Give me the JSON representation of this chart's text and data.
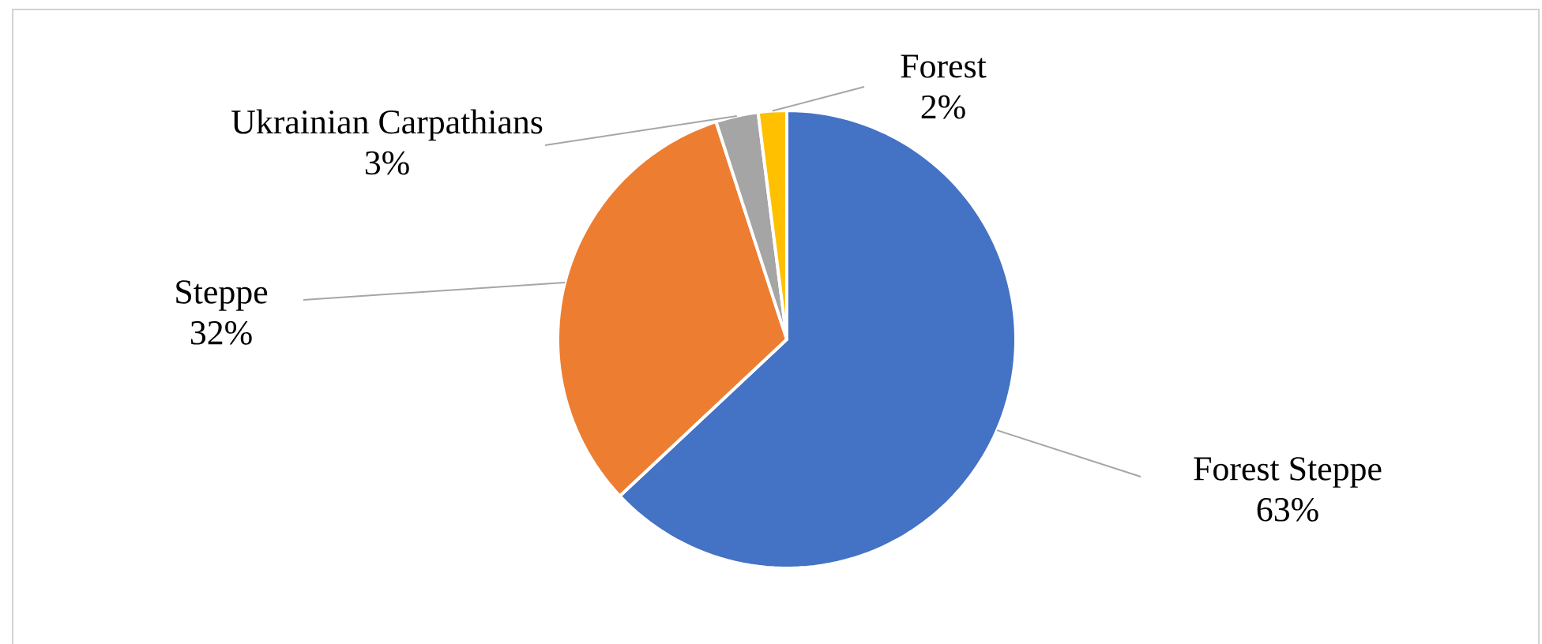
{
  "chart_data": {
    "type": "pie",
    "categories": [
      "Forest Steppe",
      "Steppe",
      "Ukrainian Carpathians",
      "Forest"
    ],
    "values": [
      63,
      32,
      3,
      2
    ],
    "colors": [
      "#4472c4",
      "#ed7d31",
      "#a5a5a5",
      "#ffc000"
    ],
    "value_labels": [
      "63%",
      "32%",
      "3%",
      "2%"
    ]
  }
}
